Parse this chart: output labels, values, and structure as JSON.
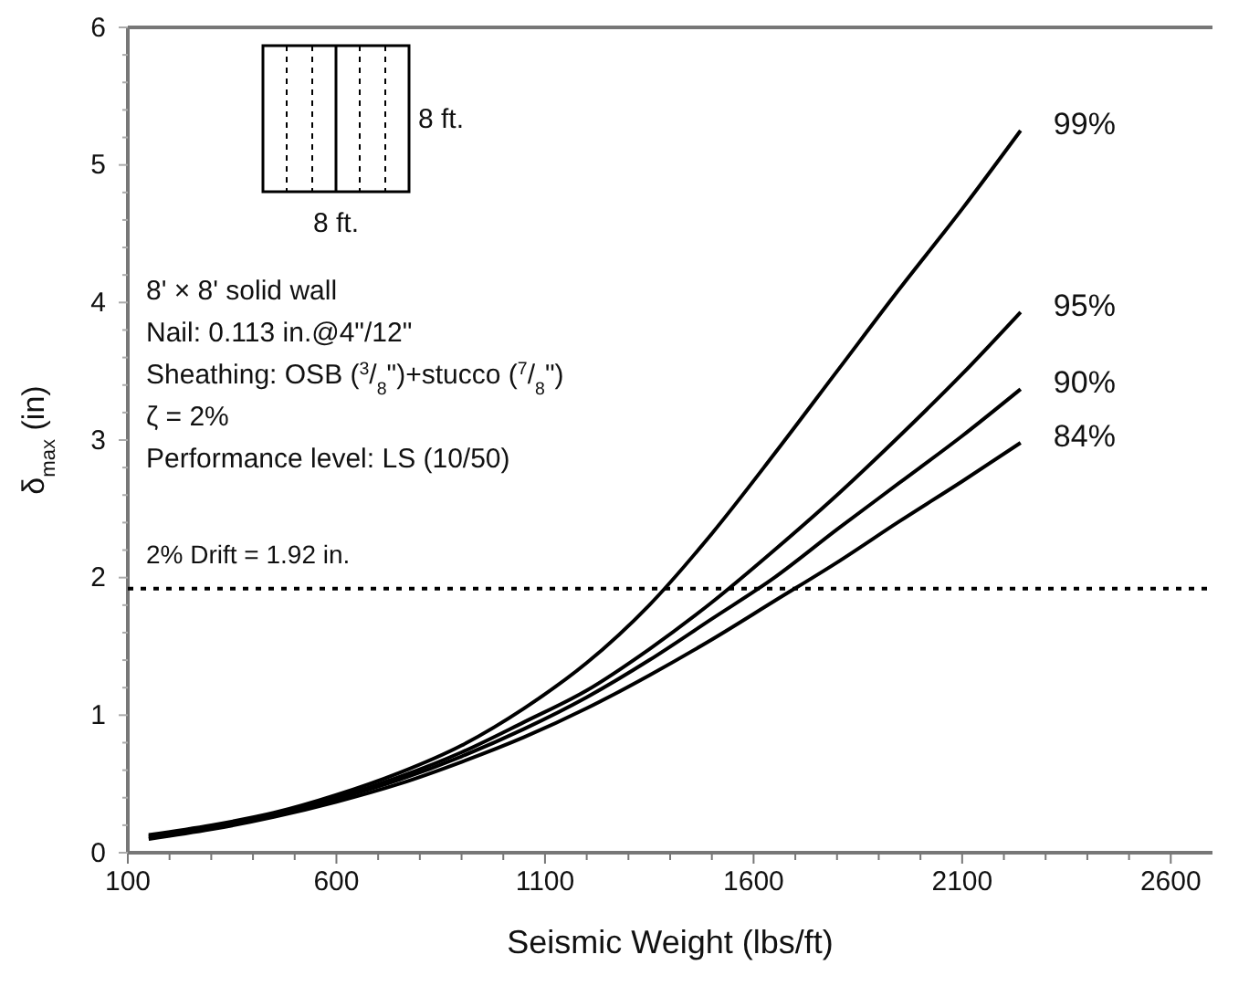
{
  "chart_data": {
    "type": "line",
    "xlabel": "Seismic Weight (lbs/ft)",
    "ylabel": "δ$_{max}$ (in)",
    "x": [
      150,
      300,
      450,
      600,
      750,
      900,
      1050,
      1200,
      1350,
      1500,
      1650,
      1800,
      1950,
      2100,
      2240
    ],
    "series": [
      {
        "name": "99%",
        "color": "#000000",
        "values": [
          0.13,
          0.2,
          0.29,
          0.42,
          0.58,
          0.78,
          1.05,
          1.38,
          1.8,
          2.32,
          2.9,
          3.5,
          4.1,
          4.68,
          5.25
        ]
      },
      {
        "name": "95%",
        "color": "#000000",
        "values": [
          0.12,
          0.19,
          0.28,
          0.4,
          0.55,
          0.73,
          0.95,
          1.18,
          1.48,
          1.82,
          2.2,
          2.6,
          3.03,
          3.48,
          3.93
        ]
      },
      {
        "name": "90%",
        "color": "#000000",
        "values": [
          0.11,
          0.18,
          0.27,
          0.39,
          0.53,
          0.7,
          0.9,
          1.13,
          1.4,
          1.7,
          2.0,
          2.35,
          2.69,
          3.03,
          3.37
        ]
      },
      {
        "name": "84%",
        "color": "#000000",
        "values": [
          0.1,
          0.17,
          0.26,
          0.37,
          0.5,
          0.66,
          0.84,
          1.05,
          1.29,
          1.55,
          1.83,
          2.11,
          2.41,
          2.7,
          2.98
        ]
      }
    ],
    "xlim": [
      100,
      2700
    ],
    "xticks": [
      100,
      {
        "value": 200,
        "label": null
      },
      {
        "value": 300,
        "label": null
      },
      {
        "value": 400,
        "label": null
      },
      {
        "value": 500,
        "label": null
      },
      600,
      {
        "value": 700,
        "label": null
      },
      {
        "value": 800,
        "label": null
      },
      {
        "value": 900,
        "label": null
      },
      {
        "value": 1000,
        "label": null
      },
      1100,
      {
        "value": 1200,
        "label": null
      },
      {
        "value": 1300,
        "label": null
      },
      {
        "value": 1400,
        "label": null
      },
      {
        "value": 1500,
        "label": null
      },
      1600,
      {
        "value": 1700,
        "label": null
      },
      {
        "value": 1800,
        "label": null
      },
      {
        "value": 1900,
        "label": null
      },
      {
        "value": 2000,
        "label": null
      },
      2100,
      {
        "value": 2200,
        "label": null
      },
      {
        "value": 2300,
        "label": null
      },
      {
        "value": 2400,
        "label": null
      },
      {
        "value": 2500,
        "label": null
      },
      2600
    ],
    "ylim": [
      0,
      6
    ],
    "yticks": [
      0,
      {
        "value": 0.2,
        "label": null
      },
      {
        "value": 0.4,
        "label": null
      },
      {
        "value": 0.6,
        "label": null
      },
      {
        "value": 0.8,
        "label": null
      },
      1,
      {
        "value": 1.2,
        "label": null
      },
      {
        "value": 1.4,
        "label": null
      },
      {
        "value": 1.6,
        "label": null
      },
      {
        "value": 1.8,
        "label": null
      },
      2,
      {
        "value": 2.2,
        "label": null
      },
      {
        "value": 2.4,
        "label": null
      },
      {
        "value": 2.6,
        "label": null
      },
      {
        "value": 2.8,
        "label": null
      },
      3,
      {
        "value": 3.2,
        "label": null
      },
      {
        "value": 3.4,
        "label": null
      },
      {
        "value": 3.6,
        "label": null
      },
      {
        "value": 3.8,
        "label": null
      },
      4,
      {
        "value": 4.2,
        "label": null
      },
      {
        "value": 4.4,
        "label": null
      },
      {
        "value": 4.6,
        "label": null
      },
      {
        "value": 4.8,
        "label": null
      },
      5,
      {
        "value": 5.2,
        "label": null
      },
      {
        "value": 5.4,
        "label": null
      },
      {
        "value": 5.6,
        "label": null
      },
      {
        "value": 5.8,
        "label": null
      },
      6
    ],
    "line_style": "solid",
    "ref_lines": [
      {
        "axis": "y",
        "value": 1.92,
        "label": "2% Drift = 1.92 in.",
        "line_style": "dotted",
        "color": "#000000"
      }
    ],
    "annotations": [
      "8 ft.",
      "8 ft.",
      "8' × 8' solid wall",
      "Nail: 0.113 in.@4\"/12\"",
      "Sheathing: OSB ($^{3}$/$_{8}$\")+stucco ($^{7}$/$_{8}$\")",
      "ζ = 2%",
      "Performance level: LS (10/50)"
    ]
  }
}
